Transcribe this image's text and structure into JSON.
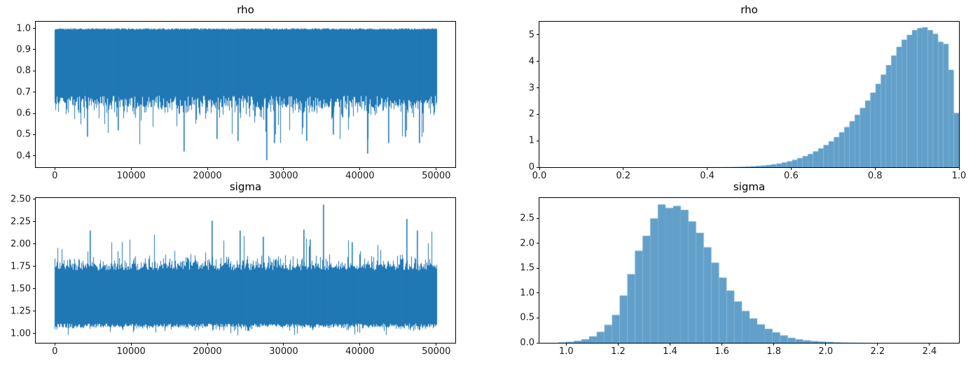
{
  "figure": {
    "background": "#ffffff",
    "description": "2x2 matplotlib-style figure: MCMC trace plots (left column) and posterior histograms (right column) for parameters rho and sigma"
  },
  "colors": {
    "trace_line": "#1f77b4",
    "hist_fill": "#62a0ca",
    "spine": "#000000",
    "tick_label": "#1a1a1a"
  },
  "chart_data": [
    {
      "id": "rho-trace",
      "type": "line",
      "title": "rho",
      "description": "Trace of 50000 MCMC samples of rho, dense band oscillating between ~0.6 and 1.0 with occasional dips to ~0.38",
      "x_range": [
        0,
        50000
      ],
      "xlim": [
        -2500,
        52500
      ],
      "ylim": [
        0.3465,
        1.0315
      ],
      "xticks": {
        "values": [
          0,
          10000,
          20000,
          30000,
          40000,
          50000
        ],
        "labels": [
          "0",
          "10000",
          "20000",
          "30000",
          "40000",
          "50000"
        ]
      },
      "yticks": {
        "values": [
          0.4,
          0.5,
          0.6,
          0.7,
          0.8,
          0.9,
          1.0
        ],
        "labels": [
          "0.4",
          "0.5",
          "0.6",
          "0.7",
          "0.8",
          "0.9",
          "1.0"
        ]
      },
      "grid": false,
      "seed": 7,
      "envelope": {
        "top": {
          "base": 0.9975,
          "jitter": 0.0035,
          "spike_prob": 0.0,
          "spike": 0.0,
          "rare_prob": 0.0,
          "rare_base": 0.0,
          "rare": 0.0,
          "dir": 1,
          "limit": 1.0
        },
        "bottom": {
          "base": 0.655,
          "jitter": 0.028,
          "spike_prob": 0.4,
          "spike": 0.06,
          "rare_prob": 0.05,
          "rare_base": 0.05,
          "rare": 0.14,
          "dir": -1,
          "limit": 0.38
        }
      },
      "notable_points": [
        {
          "x": 4300,
          "y": 0.49
        },
        {
          "x": 8300,
          "y": 0.52
        },
        {
          "x": 17000,
          "y": 0.42
        },
        {
          "x": 21300,
          "y": 0.48
        },
        {
          "x": 24000,
          "y": 0.47
        },
        {
          "x": 27800,
          "y": 0.38
        },
        {
          "x": 28800,
          "y": 0.46
        },
        {
          "x": 33000,
          "y": 0.47
        },
        {
          "x": 36500,
          "y": 0.5
        },
        {
          "x": 41000,
          "y": 0.41
        },
        {
          "x": 43800,
          "y": 0.46
        },
        {
          "x": 46000,
          "y": 0.49
        },
        {
          "x": 47800,
          "y": 0.46
        }
      ]
    },
    {
      "id": "rho-hist",
      "type": "bar",
      "title": "rho",
      "description": "Density histogram of rho samples, left-skewed, peak density ~5.3 near rho=0.92",
      "xlim": [
        0.0,
        1.0
      ],
      "ylim": [
        0,
        5.5
      ],
      "xticks": {
        "values": [
          0.0,
          0.2,
          0.4,
          0.6,
          0.8,
          1.0
        ],
        "labels": [
          "0.0",
          "0.2",
          "0.4",
          "0.6",
          "0.8",
          "1.0"
        ]
      },
      "yticks": {
        "values": [
          0,
          1,
          2,
          3,
          4,
          5
        ],
        "labels": [
          "0",
          "1",
          "2",
          "3",
          "4",
          "5"
        ]
      },
      "grid": false,
      "bins_start": 0.3787,
      "bin_width": 0.012426,
      "densities": [
        0.001,
        0.002,
        0.003,
        0.003,
        0.004,
        0.006,
        0.008,
        0.012,
        0.018,
        0.025,
        0.035,
        0.048,
        0.065,
        0.085,
        0.11,
        0.14,
        0.18,
        0.225,
        0.28,
        0.345,
        0.42,
        0.5,
        0.6,
        0.71,
        0.84,
        0.98,
        1.14,
        1.32,
        1.52,
        1.74,
        1.98,
        2.24,
        2.52,
        2.82,
        3.15,
        3.5,
        3.86,
        4.22,
        4.55,
        4.82,
        5.0,
        5.18,
        5.26,
        5.29,
        5.18,
        5.04,
        4.74,
        4.66,
        3.68,
        2.05
      ]
    },
    {
      "id": "sigma-trace",
      "type": "line",
      "title": "sigma",
      "description": "Trace of 50000 MCMC samples of sigma, dense band between ~1.08 and ~1.75 with spikes up to ~2.44 and down to ~0.97",
      "x_range": [
        0,
        50000
      ],
      "xlim": [
        -2500,
        52500
      ],
      "ylim": [
        0.8965,
        2.5135
      ],
      "xticks": {
        "values": [
          0,
          10000,
          20000,
          30000,
          40000,
          50000
        ],
        "labels": [
          "0",
          "10000",
          "20000",
          "30000",
          "40000",
          "50000"
        ]
      },
      "yticks": {
        "values": [
          1.0,
          1.25,
          1.5,
          1.75,
          2.0,
          2.25,
          2.5
        ],
        "labels": [
          "1.00",
          "1.25",
          "1.50",
          "1.75",
          "2.00",
          "2.25",
          "2.50"
        ]
      },
      "grid": false,
      "seed": 12345,
      "envelope": {
        "top": {
          "base": 1.745,
          "jitter": 0.04,
          "spike_prob": 0.4,
          "spike": 0.11,
          "rare_prob": 0.045,
          "rare_base": 0.08,
          "rare": 0.22,
          "dir": 1,
          "limit": 2.3
        },
        "bottom": {
          "base": 1.09,
          "jitter": 0.022,
          "spike_prob": 0.3,
          "spike": 0.045,
          "rare_prob": 0.02,
          "rare_base": 0.04,
          "rare": 0.07,
          "dir": -1,
          "limit": 0.965
        }
      },
      "notable_points": [
        {
          "x": 4700,
          "y": 2.15
        },
        {
          "x": 20600,
          "y": 2.26
        },
        {
          "x": 24300,
          "y": 2.15
        },
        {
          "x": 27300,
          "y": 2.08
        },
        {
          "x": 32700,
          "y": 2.16
        },
        {
          "x": 33500,
          "y": 2.05
        },
        {
          "x": 35200,
          "y": 2.44
        },
        {
          "x": 39000,
          "y": 2.02
        },
        {
          "x": 46200,
          "y": 2.28
        },
        {
          "x": 47500,
          "y": 2.15
        }
      ]
    },
    {
      "id": "sigma-hist",
      "type": "bar",
      "title": "sigma",
      "description": "Density histogram of sigma samples, right-skewed bell, peak density ~2.78 near sigma=1.36",
      "xlim": [
        0.8965,
        2.5135
      ],
      "ylim": [
        0,
        2.91
      ],
      "xticks": {
        "values": [
          1.0,
          1.2,
          1.4,
          1.6,
          1.8,
          2.0,
          2.2,
          2.4
        ],
        "labels": [
          "1.0",
          "1.2",
          "1.4",
          "1.6",
          "1.8",
          "2.0",
          "2.2",
          "2.4"
        ]
      },
      "yticks": {
        "values": [
          0.0,
          0.5,
          1.0,
          1.5,
          2.0,
          2.5
        ],
        "labels": [
          "0.0",
          "0.5",
          "1.0",
          "1.5",
          "2.0",
          "2.5"
        ]
      },
      "grid": false,
      "bins_start": 0.9703,
      "bin_width": 0.02945,
      "densities": [
        0.01,
        0.02,
        0.04,
        0.07,
        0.13,
        0.22,
        0.36,
        0.56,
        0.95,
        1.38,
        1.85,
        2.15,
        2.5,
        2.78,
        2.71,
        2.75,
        2.67,
        2.44,
        2.21,
        1.92,
        1.61,
        1.31,
        1.05,
        0.83,
        0.64,
        0.49,
        0.37,
        0.28,
        0.21,
        0.15,
        0.1,
        0.07,
        0.05,
        0.035,
        0.025,
        0.018,
        0.01,
        0.005,
        0.003,
        0.002,
        0.002,
        0.001,
        0.001,
        0.001,
        0.001,
        0.001,
        0.001,
        0.001,
        0.001,
        0.001
      ]
    }
  ]
}
